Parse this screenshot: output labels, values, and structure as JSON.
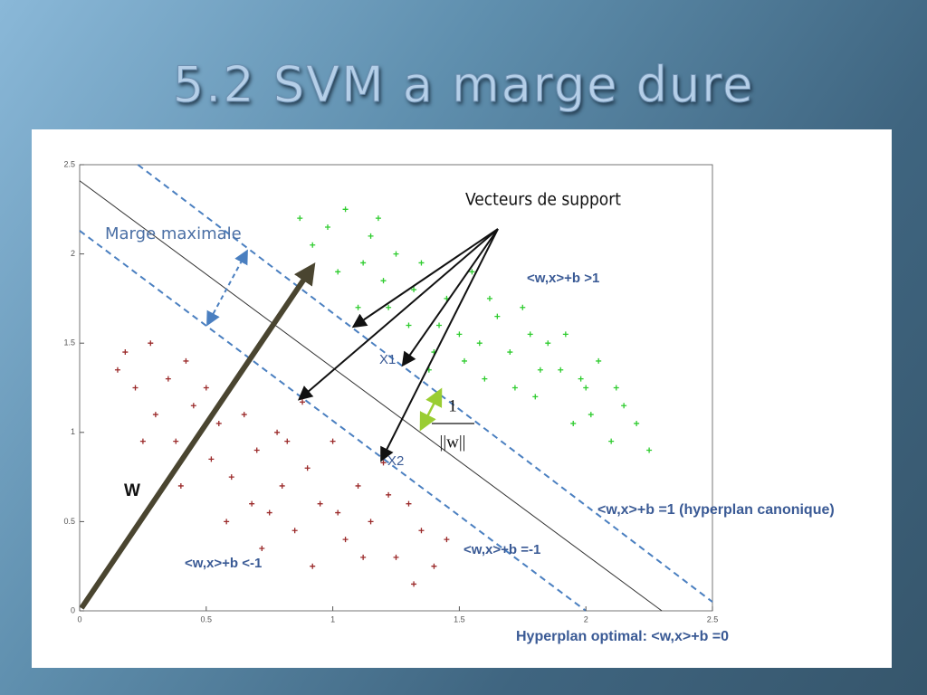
{
  "title": "5.2 SVM a marge dure",
  "chart_data": {
    "type": "scatter",
    "xlim": [
      0,
      2.5
    ],
    "ylim": [
      0,
      2.5
    ],
    "xticks": [
      0,
      0.5,
      1,
      1.5,
      2,
      2.5
    ],
    "yticks": [
      0,
      0.5,
      1,
      1.5,
      2,
      2.5
    ],
    "series": [
      {
        "color": "#2ecc2e",
        "marker": "+",
        "x": [
          0.87,
          0.92,
          0.98,
          1.02,
          1.05,
          1.1,
          1.15,
          1.2,
          1.25,
          1.3,
          1.35,
          1.4,
          1.45,
          1.5,
          1.55,
          1.6,
          1.65,
          1.7,
          1.75,
          1.8,
          1.85,
          1.9,
          1.95,
          2.0,
          2.05,
          2.1,
          2.15,
          2.2,
          2.25,
          1.12,
          1.22,
          1.32,
          1.42,
          1.52,
          1.62,
          1.72,
          1.82,
          1.92,
          2.02,
          1.18,
          1.38,
          1.58,
          1.78,
          1.98,
          2.12
        ],
        "y": [
          2.2,
          2.05,
          2.15,
          1.9,
          2.25,
          1.7,
          2.1,
          1.85,
          2.0,
          1.6,
          1.95,
          1.45,
          1.75,
          1.55,
          1.9,
          1.3,
          1.65,
          1.45,
          1.7,
          1.2,
          1.5,
          1.35,
          1.05,
          1.25,
          1.4,
          0.95,
          1.15,
          1.05,
          0.9,
          1.95,
          1.7,
          1.8,
          1.6,
          1.4,
          1.75,
          1.25,
          1.35,
          1.55,
          1.1,
          2.2,
          1.35,
          1.5,
          1.55,
          1.3,
          1.25
        ]
      },
      {
        "color": "#9b2a2a",
        "marker": "+",
        "x": [
          0.15,
          0.18,
          0.22,
          0.28,
          0.3,
          0.35,
          0.38,
          0.42,
          0.45,
          0.5,
          0.52,
          0.55,
          0.6,
          0.65,
          0.68,
          0.7,
          0.75,
          0.78,
          0.8,
          0.85,
          0.88,
          0.9,
          0.95,
          1.0,
          1.05,
          1.1,
          1.15,
          1.2,
          1.25,
          1.3,
          1.35,
          1.4,
          1.45,
          0.25,
          0.4,
          0.58,
          0.72,
          0.82,
          0.92,
          1.02,
          1.12,
          1.22,
          1.32
        ],
        "y": [
          1.35,
          1.45,
          1.25,
          1.5,
          1.1,
          1.3,
          0.95,
          1.4,
          1.15,
          1.25,
          0.85,
          1.05,
          0.75,
          1.1,
          0.6,
          0.9,
          0.55,
          1.0,
          0.7,
          0.45,
          1.17,
          0.8,
          0.6,
          0.95,
          0.4,
          0.7,
          0.5,
          0.83,
          0.3,
          0.6,
          0.45,
          0.25,
          0.4,
          0.95,
          0.7,
          0.5,
          0.35,
          0.95,
          0.25,
          0.55,
          0.3,
          0.65,
          0.15
        ]
      }
    ],
    "lines": [
      {
        "style": "solid",
        "color": "#333333",
        "x": [
          0,
          2.3
        ],
        "y": [
          2.41,
          0
        ]
      },
      {
        "style": "dashed",
        "color": "#4a7fc0",
        "x": [
          0.23,
          2.5
        ],
        "y": [
          2.5,
          0.05
        ]
      },
      {
        "style": "dashed",
        "color": "#4a7fc0",
        "x": [
          0,
          2.0
        ],
        "y": [
          2.13,
          0
        ]
      }
    ],
    "annotations": [
      "Vecteurs de support",
      "Marge maximale",
      "<w,x>+b >1",
      "X1",
      "1",
      "||w||",
      "X2",
      "W",
      "<w,x>+b =1 (hyperplan canonique)",
      "<w,x>+b =-1",
      "<w,x>+b <-1",
      "Hyperplan optimal: <w,x>+b =0"
    ]
  }
}
